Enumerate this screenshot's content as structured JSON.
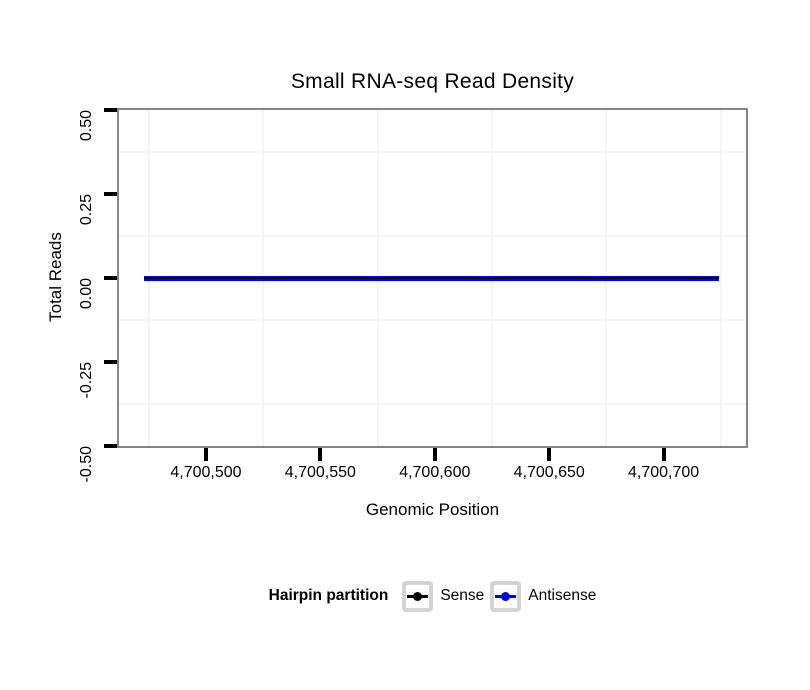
{
  "chart_data": {
    "type": "line",
    "title": "Small RNA-seq Read Density",
    "xlabel": "Genomic Position",
    "ylabel": "Total Reads",
    "xlim": [
      4700462,
      4700736
    ],
    "ylim": [
      -0.5,
      0.5
    ],
    "x_ticks": [
      4700500,
      4700550,
      4700600,
      4700650,
      4700700
    ],
    "x_tick_labels": [
      "4,700,500",
      "4,700,550",
      "4,700,600",
      "4,700,650",
      "4,700,700"
    ],
    "y_ticks": [
      0.5,
      0.25,
      0,
      -0.25,
      -0.5
    ],
    "y_tick_labels": [
      "0.50",
      "0.25",
      "0.00",
      "-0.25",
      "-0.50"
    ],
    "grid": {
      "major": false,
      "minor": true
    },
    "x_minor_gridlines": [
      4700475,
      4700525,
      4700575,
      4700625,
      4700675,
      4700725
    ],
    "y_minor_gridlines": [
      0.375,
      0.125,
      -0.125,
      -0.375
    ],
    "legend_position": "bottom",
    "series": [
      {
        "name": "Sense",
        "color": "#000000",
        "x": [
          4700473,
          4700724
        ],
        "y": [
          0,
          0
        ]
      },
      {
        "name": "Antisense",
        "color": "#0000ee",
        "x": [
          4700473,
          4700724
        ],
        "y": [
          0,
          0
        ]
      }
    ]
  },
  "legend": {
    "title": "Hairpin partition",
    "entries": [
      {
        "label": "Sense",
        "color": "#000000"
      },
      {
        "label": "Antisense",
        "color": "#0000ee"
      }
    ]
  },
  "colors": {
    "panel_border": "#858585",
    "minor_gridline": "#f5f5f5",
    "tick_mark": "#000000",
    "text": "#000000",
    "legend_key_border": "#d4d4d4",
    "sense": "#000000",
    "antisense": "#0000ee"
  }
}
